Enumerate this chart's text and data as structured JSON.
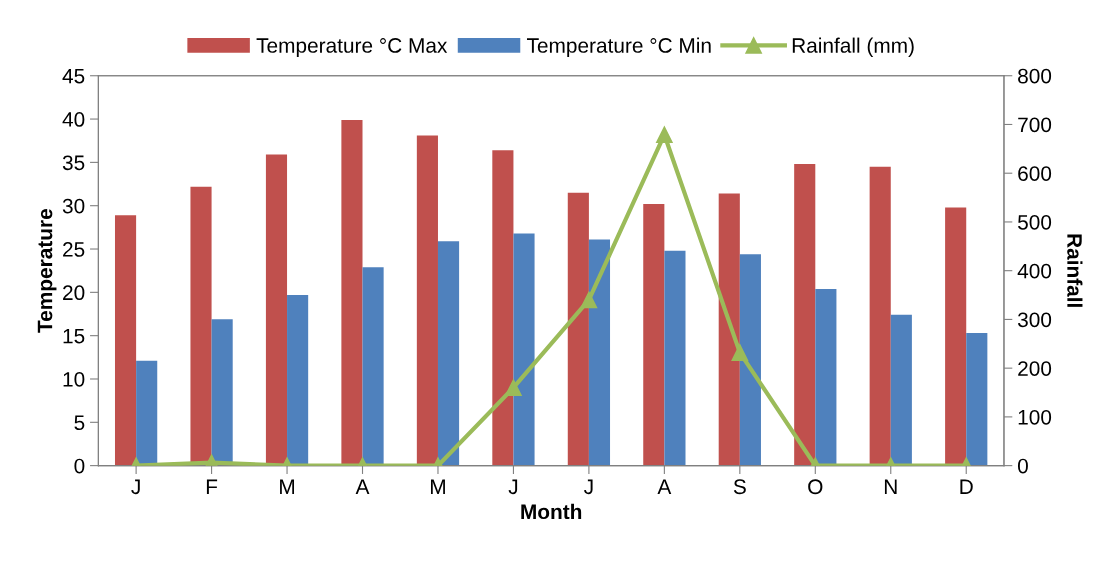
{
  "chart_data": {
    "type": "bar",
    "xlabel": "Month",
    "ylabel": "Temperature",
    "y2label": "Rainfall",
    "categories": [
      "J",
      "F",
      "M",
      "A",
      "M",
      "J",
      "J",
      "A",
      "S",
      "O",
      "N",
      "D"
    ],
    "series": [
      {
        "name": "Temperature °C Max",
        "color": "#c0504d",
        "values": [
          28.9,
          32.2,
          35.9,
          39.9,
          38.1,
          36.4,
          31.5,
          30.2,
          31.4,
          34.8,
          34.5,
          29.8
        ]
      },
      {
        "name": "Temperature °C Min",
        "color": "#4f81bd",
        "values": [
          12.1,
          16.9,
          19.7,
          22.9,
          25.9,
          26.8,
          26.1,
          24.8,
          24.4,
          20.4,
          17.4,
          15.3
        ]
      },
      {
        "name": "Rainfall (mm)",
        "color": "#9bbb59",
        "type": "line",
        "axis": "y2",
        "marker": "triangle",
        "values": [
          0,
          6,
          0,
          0,
          0,
          160,
          340,
          679,
          232,
          0,
          0,
          0
        ]
      }
    ],
    "ylim": [
      0,
      45
    ],
    "yticks": [
      0,
      5,
      10,
      15,
      20,
      25,
      30,
      35,
      40,
      45
    ],
    "y2lim": [
      0,
      800
    ],
    "y2ticks": [
      0,
      100,
      200,
      300,
      400,
      500,
      600,
      700,
      800
    ],
    "legend": "top",
    "grid": false
  }
}
